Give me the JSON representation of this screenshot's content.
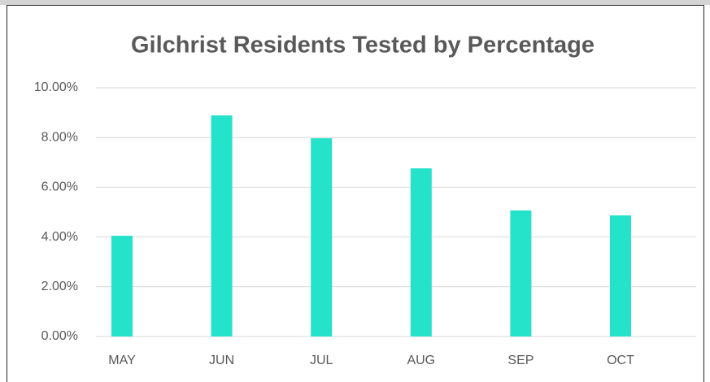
{
  "chart_data": {
    "type": "bar",
    "title": "Gilchrist Residents Tested by Percentage",
    "categories": [
      "MAY",
      "JUN",
      "JUL",
      "AUG",
      "SEP",
      "OCT"
    ],
    "values": [
      4.05,
      8.89,
      7.97,
      6.76,
      5.07,
      4.87
    ],
    "color": "#25e2cb",
    "ylim": [
      0,
      10
    ],
    "yticks": [
      {
        "value": 0,
        "label": "0.00%"
      },
      {
        "value": 2,
        "label": "2.00%"
      },
      {
        "value": 4,
        "label": "4.00%"
      },
      {
        "value": 6,
        "label": "6.00%"
      },
      {
        "value": 8,
        "label": "8.00%"
      },
      {
        "value": 10,
        "label": "10.00%"
      }
    ],
    "grid": true
  }
}
